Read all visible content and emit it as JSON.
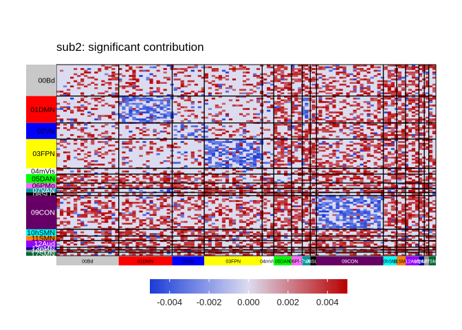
{
  "chart_data": {
    "type": "heatmap",
    "title": "sub2: significant contribution",
    "networks": [
      {
        "label": "00Bd",
        "size": 70,
        "color": "#c8c8c8",
        "text": "#000000"
      },
      {
        "label": "01DMN",
        "size": 60,
        "color": "#ff0000",
        "text": "#000000"
      },
      {
        "label": "02Vis",
        "size": 36,
        "color": "#0000ff",
        "text": "#000000"
      },
      {
        "label": "03FPN",
        "size": 65,
        "color": "#ffff00",
        "text": "#000000"
      },
      {
        "label": "04mVis",
        "size": 13,
        "color": "#ffffff",
        "text": "#000000"
      },
      {
        "label": "05DAN",
        "size": 20,
        "color": "#00ff00",
        "text": "#000000"
      },
      {
        "label": "06PMo",
        "size": 12,
        "color": "#ff66ff",
        "text": "#000000"
      },
      {
        "label": "07VAN",
        "size": 9,
        "color": "#009999",
        "text": "#ffffff"
      },
      {
        "label": "08SLC",
        "size": 7,
        "color": "#000000",
        "text": "#ffffff"
      },
      {
        "label": "09CON",
        "size": 75,
        "color": "#660066",
        "text": "#ffffff"
      },
      {
        "label": "10hSMN",
        "size": 15,
        "color": "#00ffff",
        "text": "#000000"
      },
      {
        "label": "11SMN",
        "size": 10,
        "color": "#ff8000",
        "text": "#000000"
      },
      {
        "label": "12Aud",
        "size": 15,
        "color": "#9900ff",
        "text": "#ffffff"
      },
      {
        "label": "13pMN",
        "size": 6,
        "color": "#000099",
        "text": "#ffffff"
      },
      {
        "label": "16PON",
        "size": 5,
        "color": "#999999",
        "text": "#ffffff"
      },
      {
        "label": "17SMN",
        "size": 8,
        "color": "#006633",
        "text": "#ffffff"
      }
    ],
    "colorbar": {
      "min": -0.005,
      "max": 0.005,
      "low_color": "#1a3bd8",
      "mid_color": "#dcdcf0",
      "high_color": "#b80000",
      "ticks": [
        "-0.004",
        "-0.002",
        "0.000",
        "0.002",
        "0.004"
      ],
      "tick_values": [
        -0.004,
        -0.002,
        0.0,
        0.002,
        0.004
      ]
    },
    "legend": "bottom"
  }
}
